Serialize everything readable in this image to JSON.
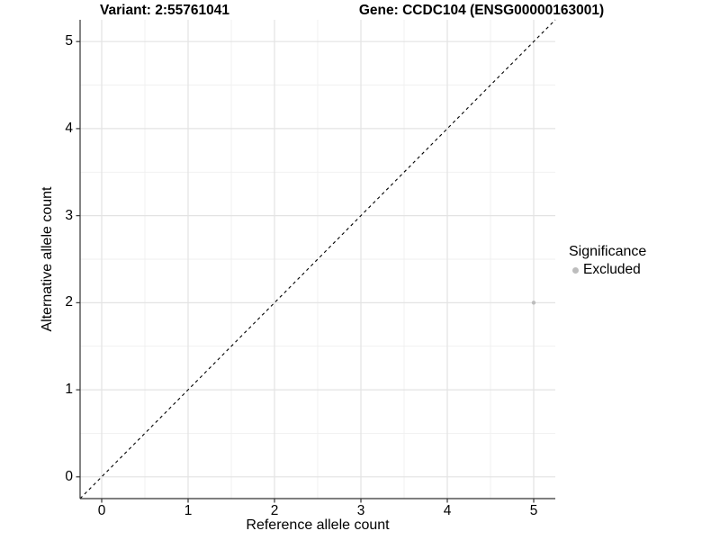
{
  "chart_data": {
    "type": "scatter",
    "titles": {
      "left": "Variant: 2:55761041",
      "right": "Gene: CCDC104 (ENSG00000163001)"
    },
    "xlabel": "Reference allele count",
    "ylabel": "Alternative allele count",
    "xlim": [
      -0.25,
      5.25
    ],
    "ylim": [
      -0.25,
      5.25
    ],
    "xticks": [
      0,
      1,
      2,
      3,
      4,
      5
    ],
    "yticks": [
      0,
      1,
      2,
      3,
      4,
      5
    ],
    "xminor": [
      0.5,
      1.5,
      2.5,
      3.5,
      4.5
    ],
    "yminor": [
      0.5,
      1.5,
      2.5,
      3.5,
      4.5
    ],
    "grid": true,
    "points": [
      {
        "x": 5,
        "y": 2,
        "significance": "Excluded"
      }
    ],
    "reference_line": {
      "slope": 1,
      "intercept": 0,
      "style": "dashed"
    },
    "legend": {
      "title": "Significance",
      "position": "right",
      "entries": [
        {
          "label": "Excluded",
          "color": "#BDBDBD"
        }
      ]
    },
    "colors": {
      "point": "#BDBDBD",
      "grid_major": "#E3E3E3",
      "grid_minor": "#EFEFEF",
      "axis_line": "#333333",
      "reference_line": "#000000",
      "background": "#FFFFFF"
    }
  }
}
